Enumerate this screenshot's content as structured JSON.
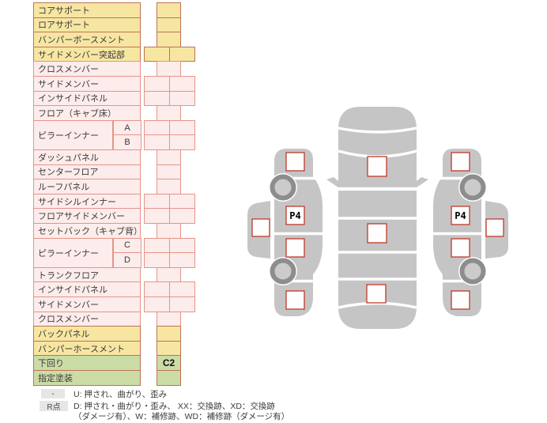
{
  "table": {
    "rows": [
      {
        "label": "コアサポート",
        "color": "yellow",
        "cells": 1,
        "values": [
          ""
        ]
      },
      {
        "label": "ロアサポート",
        "color": "yellow",
        "cells": 1,
        "values": [
          ""
        ]
      },
      {
        "label": "バンパーボースメント",
        "color": "yellow",
        "cells": 1,
        "values": [
          ""
        ]
      },
      {
        "label": "サイドメンバー突起部",
        "color": "yellow",
        "cells": 2,
        "values": [
          "",
          ""
        ]
      },
      {
        "label": "クロスメンバー",
        "color": "pink",
        "cells": 1,
        "values": [
          ""
        ]
      },
      {
        "label": "サイドメンバー",
        "color": "pink",
        "cells": 2,
        "values": [
          "",
          ""
        ]
      },
      {
        "label": "インサイドパネル",
        "color": "pink",
        "cells": 2,
        "values": [
          "",
          ""
        ]
      },
      {
        "label": "フロア（キャブ床）",
        "color": "pink",
        "cells": 1,
        "values": [
          ""
        ]
      },
      {
        "label": "ピラーインナー",
        "sub": "A",
        "group": "start",
        "color": "pink",
        "cells": 2,
        "values": [
          "",
          ""
        ]
      },
      {
        "label": "",
        "sub": "B",
        "group": "end",
        "color": "pink",
        "cells": 2,
        "values": [
          "",
          ""
        ]
      },
      {
        "label": "ダッシュパネル",
        "color": "pink",
        "cells": 1,
        "values": [
          ""
        ]
      },
      {
        "label": "センターフロア",
        "color": "pink",
        "cells": 1,
        "values": [
          ""
        ]
      },
      {
        "label": "ルーフパネル",
        "color": "pink",
        "cells": 1,
        "values": [
          ""
        ]
      },
      {
        "label": "サイドシルインナー",
        "color": "pink",
        "cells": 2,
        "values": [
          "",
          ""
        ]
      },
      {
        "label": "フロアサイドメンバー",
        "color": "pink",
        "cells": 2,
        "values": [
          "",
          ""
        ]
      },
      {
        "label": "セットバック（キャブ背）",
        "color": "pink",
        "cells": 1,
        "values": [
          ""
        ]
      },
      {
        "label": "ピラーインナー",
        "sub": "C",
        "group": "start",
        "color": "pink",
        "cells": 2,
        "values": [
          "",
          ""
        ]
      },
      {
        "label": "",
        "sub": "D",
        "group": "end",
        "color": "pink",
        "cells": 2,
        "values": [
          "",
          ""
        ]
      },
      {
        "label": "トランクフロア",
        "color": "pink",
        "cells": 1,
        "values": [
          ""
        ]
      },
      {
        "label": "インサイドパネル",
        "color": "pink",
        "cells": 2,
        "values": [
          "",
          ""
        ]
      },
      {
        "label": "サイドメンバー",
        "color": "pink",
        "cells": 2,
        "values": [
          "",
          ""
        ]
      },
      {
        "label": "クロスメンバー",
        "color": "pink",
        "cells": 1,
        "values": [
          ""
        ]
      },
      {
        "label": "バックパネル",
        "color": "yellow",
        "cells": 1,
        "values": [
          ""
        ]
      },
      {
        "label": "バンパーホースメント",
        "color": "yellow",
        "cells": 1,
        "values": [
          ""
        ]
      },
      {
        "label": "下回り",
        "color": "green",
        "cells": 1,
        "values": [
          "C2"
        ]
      },
      {
        "label": "指定塗装",
        "color": "green",
        "cells": 1,
        "values": [
          ""
        ]
      }
    ]
  },
  "legend": {
    "row1_badge": "-",
    "row1_text": "U: 押され、曲がり、歪み",
    "row2_badge": "R点",
    "row2_text": "D: 押され・曲がり・歪み、 XX：交換跡、XD：交換跡",
    "row2_text2": "（ダメージ有）、W：補修跡、WD：補修跡（ダメージ有）"
  },
  "diagram": {
    "left_marker_label": "P4",
    "right_marker_label": "P4"
  },
  "colors": {
    "yellow_row": "#F7E6A2",
    "pink_row": "#FCECEB",
    "green_row": "#CBDCA6",
    "warm_border": "#BE7352",
    "pink_border": "#E59589",
    "car_gray": "#C5C5C6",
    "marker_red": "#C0392B"
  }
}
